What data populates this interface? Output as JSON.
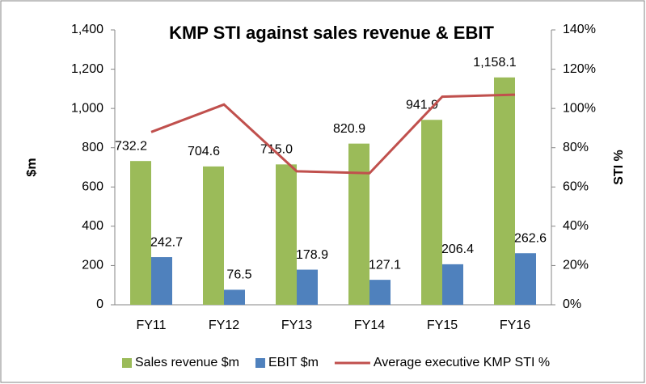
{
  "chart_data": {
    "type": "bar-line",
    "title": "KMP STI against sales revenue & EBIT",
    "y_label": "$m",
    "y2_label": "STI %",
    "categories": [
      "FY11",
      "FY12",
      "FY13",
      "FY14",
      "FY15",
      "FY16"
    ],
    "series": [
      {
        "name": "Sales revenue $m",
        "type": "bar",
        "color": "#9bbb59",
        "values": [
          732.2,
          704.6,
          715.0,
          820.9,
          941.9,
          1158.1
        ],
        "value_labels": [
          "732.2",
          "704.6",
          "715.0",
          "820.9",
          "941.9",
          "1,158.1"
        ]
      },
      {
        "name": "EBIT $m",
        "type": "bar",
        "color": "#4f81bd",
        "values": [
          242.7,
          76.5,
          178.9,
          127.1,
          206.4,
          262.6
        ]
      },
      {
        "name": "Average executive KMP STI %",
        "type": "line",
        "axis": "y2",
        "color": "#c0504d",
        "values": [
          88,
          102,
          68,
          67,
          106,
          107
        ]
      }
    ],
    "ylim": [
      0,
      1400
    ],
    "yticks": [
      0,
      200,
      400,
      600,
      800,
      {
        "value": 1000,
        "label": "1,000"
      },
      {
        "value": 1200,
        "label": "1,200"
      },
      {
        "value": 1400,
        "label": "1,400"
      }
    ],
    "y2lim": [
      0,
      140
    ],
    "y2ticks": [
      {
        "value": 0,
        "label": "0%"
      },
      {
        "value": 20,
        "label": "20%"
      },
      {
        "value": 40,
        "label": "40%"
      },
      {
        "value": 60,
        "label": "60%"
      },
      {
        "value": 80,
        "label": "80%"
      },
      {
        "value": 100,
        "label": "100%"
      },
      {
        "value": 120,
        "label": "120%"
      },
      {
        "value": 140,
        "label": "140%"
      }
    ],
    "grid": false,
    "legend": "bottom"
  }
}
